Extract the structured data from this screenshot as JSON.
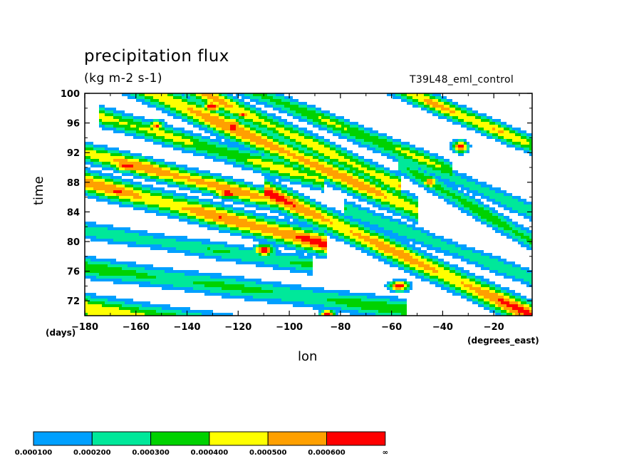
{
  "chart_data": {
    "type": "heatmap",
    "title": "precipitation flux",
    "units": "(kg m-2 s-1)",
    "run_label": "T39L48_eml_control",
    "xlabel": "lon",
    "ylabel": "time",
    "x_units": "(degrees_east)",
    "y_units": "(days)",
    "xlim": [
      -180,
      -5
    ],
    "ylim": [
      70,
      100
    ],
    "x_ticks": [
      -180,
      -160,
      -140,
      -120,
      -100,
      -80,
      -60,
      -40,
      -20
    ],
    "y_ticks": [
      72,
      76,
      80,
      84,
      88,
      92,
      96,
      100
    ],
    "x_tick_labels": [
      "−180",
      "−160",
      "−140",
      "−120",
      "−100",
      "−80",
      "−60",
      "−40",
      "−20"
    ],
    "y_tick_labels": [
      "72",
      "76",
      "80",
      "84",
      "88",
      "92",
      "96",
      "100"
    ],
    "levels": [
      0.0001,
      0.0002,
      0.0003,
      0.0004,
      0.0005,
      0.0006
    ],
    "colorbar_labels": [
      "0.000100",
      "0.000200",
      "0.000300",
      "0.000400",
      "0.000500",
      "0.000600",
      "∞"
    ],
    "colors": [
      "#00a0ff",
      "#00e89a",
      "#00d200",
      "#ffff00",
      "#ffa000",
      "#ff0000"
    ],
    "bands": [
      {
        "x0": -180,
        "t0": 71.0,
        "x1": -40,
        "t1": 64.0,
        "w": 1.7,
        "peak": 0.00045
      },
      {
        "x0": -180,
        "t0": 76.5,
        "x1": -60,
        "t1": 71.0,
        "w": 1.4,
        "peak": 0.00035
      },
      {
        "x0": -180,
        "t0": 81.5,
        "x1": -95,
        "t1": 77.0,
        "w": 1.2,
        "peak": 0.0003
      },
      {
        "x0": -180,
        "t0": 88.0,
        "x1": -90,
        "t1": 80.0,
        "w": 1.5,
        "peak": 0.0006
      },
      {
        "x0": -180,
        "t0": 92.0,
        "x1": -100,
        "t1": 85.0,
        "w": 1.3,
        "peak": 0.00055
      },
      {
        "x0": -170,
        "t0": 96.5,
        "x1": -90,
        "t1": 88.5,
        "w": 1.3,
        "peak": 0.00045
      },
      {
        "x0": -160,
        "t0": 101.0,
        "x1": -55,
        "t1": 85.0,
        "w": 1.6,
        "peak": 0.00055
      },
      {
        "x0": -140,
        "t0": 101.0,
        "x1": -60,
        "t1": 88.0,
        "w": 1.4,
        "peak": 0.0005
      },
      {
        "x0": -120,
        "t0": 101.0,
        "x1": -40,
        "t1": 90.0,
        "w": 1.2,
        "peak": 0.0004
      },
      {
        "x0": -105,
        "t0": 86.0,
        "x1": -5,
        "t1": 70.0,
        "w": 1.6,
        "peak": 0.0006
      },
      {
        "x0": -85,
        "t0": 96.0,
        "x1": -5,
        "t1": 84.0,
        "w": 1.2,
        "peak": 0.0003
      },
      {
        "x0": -60,
        "t0": 101.0,
        "x1": -5,
        "t1": 93.0,
        "w": 1.2,
        "peak": 0.0005
      },
      {
        "x0": -55,
        "t0": 90.0,
        "x1": -5,
        "t1": 80.0,
        "w": 1.3,
        "peak": 0.00035
      },
      {
        "x0": -75,
        "t0": 84.0,
        "x1": -5,
        "t1": 75.0,
        "w": 1.2,
        "peak": 0.0003
      }
    ],
    "blobs": [
      {
        "x": -130,
        "t": 98.2,
        "rx": 4,
        "rt": 0.8,
        "v": 0.0007
      },
      {
        "x": -122,
        "t": 95.5,
        "rx": 4,
        "rt": 1.2,
        "v": 0.0007
      },
      {
        "x": -163,
        "t": 90.2,
        "rx": 6,
        "rt": 0.8,
        "v": 0.0007
      },
      {
        "x": -167,
        "t": 86.8,
        "rx": 5,
        "rt": 0.7,
        "v": 0.0007
      },
      {
        "x": -124,
        "t": 86.5,
        "rx": 5,
        "rt": 0.7,
        "v": 0.0007
      },
      {
        "x": -110,
        "t": 78.8,
        "rx": 4,
        "rt": 0.8,
        "v": 0.0007
      },
      {
        "x": -33,
        "t": 92.8,
        "rx": 3,
        "rt": 0.8,
        "v": 0.0007
      },
      {
        "x": -57,
        "t": 74.0,
        "rx": 4,
        "rt": 0.7,
        "v": 0.0007
      },
      {
        "x": -118,
        "t": 97.1,
        "rx": 3,
        "rt": 0.5,
        "v": 0.00065
      },
      {
        "x": -85,
        "t": 70.3,
        "rx": 3,
        "rt": 0.4,
        "v": 0.0007
      },
      {
        "x": -45,
        "t": 88.0,
        "rx": 3,
        "rt": 0.8,
        "v": 0.00062
      },
      {
        "x": -152,
        "t": 95.6,
        "rx": 3,
        "rt": 0.8,
        "v": 0.00062
      }
    ]
  }
}
